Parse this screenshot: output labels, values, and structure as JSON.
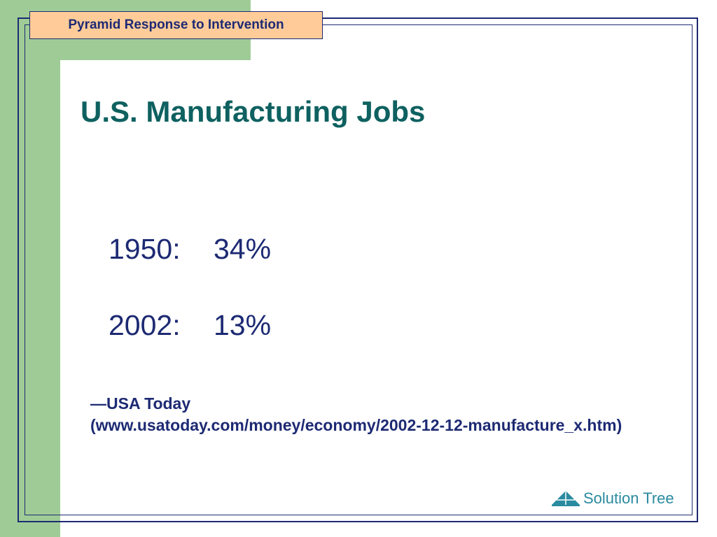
{
  "header": {
    "label": "Pyramid Response to Intervention"
  },
  "slide": {
    "title": "U.S. Manufacturing Jobs",
    "stats": [
      {
        "year": "1950:",
        "value": "34%"
      },
      {
        "year": "2002:",
        "value": "13%"
      }
    ],
    "source_line1": "—USA Today",
    "source_line2": "(www.usatoday.com/money/economy/2002-12-12-manufacture_x.htm)"
  },
  "logo": {
    "text": "Solution Tree",
    "icon": "pyramid-tree-icon",
    "color": "#2a8aa0"
  },
  "colors": {
    "green": "#9fcc96",
    "navy": "#1d2a73",
    "title_teal": "#0e6160",
    "tab_orange": "#ffcc99"
  }
}
